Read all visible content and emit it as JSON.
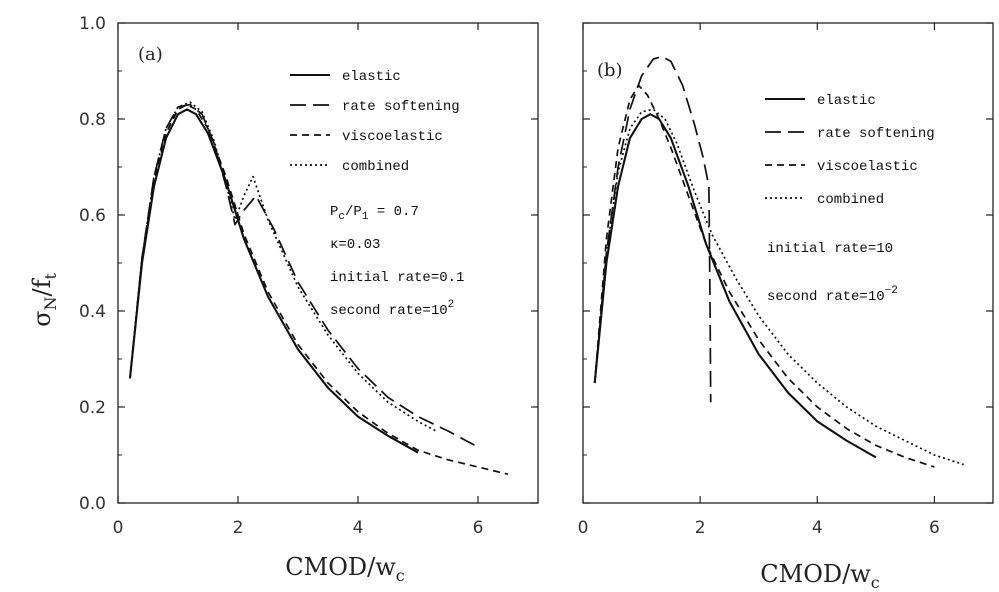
{
  "chart_data": [
    {
      "type": "line",
      "panel_label": "(a)",
      "xlabel": "CMOD/w",
      "xlabel_sub": "c",
      "ylabel": "σ",
      "ylabel_sub1": "N",
      "ylabel_mid": "/f",
      "ylabel_sub2": "t",
      "xlim": [
        0,
        7
      ],
      "ylim": [
        0,
        1.0
      ],
      "xticks": [
        0,
        2,
        4,
        6
      ],
      "xtick_labels": [
        "0",
        "2",
        "4",
        "6"
      ],
      "yticks": [
        0.0,
        0.2,
        0.4,
        0.6,
        0.8,
        1.0
      ],
      "ytick_labels": [
        "0.0",
        "0.2",
        "0.4",
        "0.6",
        "0.8",
        "1.0"
      ],
      "legend_position": "top-right",
      "series": [
        {
          "name": "elastic",
          "style": "solid",
          "x": [
            0.2,
            0.4,
            0.6,
            0.8,
            1.0,
            1.15,
            1.3,
            1.5,
            1.8,
            2.1,
            2.5,
            3.0,
            3.5,
            4.0,
            4.5,
            5.0
          ],
          "y": [
            0.26,
            0.5,
            0.66,
            0.76,
            0.81,
            0.82,
            0.81,
            0.77,
            0.67,
            0.55,
            0.43,
            0.32,
            0.24,
            0.18,
            0.14,
            0.105
          ]
        },
        {
          "name": "rate softening",
          "style": "long-dash",
          "x": [
            0.2,
            0.4,
            0.6,
            0.8,
            1.0,
            1.2,
            1.4,
            1.6,
            1.8,
            1.95,
            2.1,
            2.3,
            2.6,
            3.0,
            3.5,
            4.0,
            4.5,
            5.0,
            5.5,
            5.95
          ],
          "y": [
            0.26,
            0.51,
            0.68,
            0.78,
            0.825,
            0.83,
            0.81,
            0.75,
            0.66,
            0.58,
            0.61,
            0.64,
            0.57,
            0.46,
            0.36,
            0.28,
            0.22,
            0.18,
            0.15,
            0.12
          ]
        },
        {
          "name": "viscoelastic",
          "style": "dash",
          "x": [
            0.2,
            0.4,
            0.6,
            0.8,
            1.0,
            1.15,
            1.3,
            1.5,
            1.8,
            2.1,
            2.5,
            3.0,
            3.5,
            4.0,
            4.5,
            5.0,
            5.5,
            6.0,
            6.5
          ],
          "y": [
            0.26,
            0.51,
            0.67,
            0.77,
            0.82,
            0.83,
            0.82,
            0.78,
            0.68,
            0.56,
            0.44,
            0.33,
            0.25,
            0.19,
            0.145,
            0.11,
            0.09,
            0.075,
            0.06
          ]
        },
        {
          "name": "combined",
          "style": "dot",
          "x": [
            0.2,
            0.4,
            0.6,
            0.8,
            1.0,
            1.2,
            1.4,
            1.6,
            1.8,
            1.95,
            2.1,
            2.25,
            2.5,
            3.0,
            3.5,
            4.0,
            4.5,
            5.0,
            5.3
          ],
          "y": [
            0.26,
            0.51,
            0.68,
            0.78,
            0.825,
            0.835,
            0.815,
            0.755,
            0.665,
            0.59,
            0.64,
            0.68,
            0.59,
            0.45,
            0.35,
            0.27,
            0.21,
            0.17,
            0.15
          ]
        }
      ],
      "annotations": [
        {
          "parts": [
            {
              "t": "P"
            },
            {
              "t": "c",
              "sub": true
            },
            {
              "t": "/P"
            },
            {
              "t": "1",
              "sub": true
            },
            {
              "t": " = 0.7"
            }
          ]
        },
        {
          "parts": [
            {
              "t": "κ=0.03"
            }
          ]
        },
        {
          "parts": [
            {
              "t": "initial rate=0.1"
            }
          ]
        },
        {
          "parts": [
            {
              "t": "second rate=10"
            },
            {
              "t": "2",
              "sup": true
            }
          ]
        }
      ]
    },
    {
      "type": "line",
      "panel_label": "(b)",
      "xlabel": "CMOD/w",
      "xlabel_sub": "c",
      "xlim": [
        0,
        7
      ],
      "ylim": [
        0,
        1.0
      ],
      "xticks": [
        0,
        2,
        4,
        6
      ],
      "xtick_labels": [
        "0",
        "2",
        "4",
        "6"
      ],
      "legend_position": "top-right",
      "series": [
        {
          "name": "elastic",
          "style": "solid",
          "x": [
            0.2,
            0.4,
            0.6,
            0.8,
            1.0,
            1.15,
            1.3,
            1.5,
            1.8,
            2.1,
            2.5,
            3.0,
            3.5,
            4.0,
            4.5,
            5.0
          ],
          "y": [
            0.25,
            0.5,
            0.66,
            0.76,
            0.8,
            0.81,
            0.8,
            0.76,
            0.66,
            0.54,
            0.42,
            0.31,
            0.23,
            0.17,
            0.13,
            0.095
          ]
        },
        {
          "name": "rate softening",
          "style": "long-dash",
          "x": [
            0.2,
            0.4,
            0.6,
            0.8,
            1.0,
            1.2,
            1.35,
            1.5,
            1.7,
            1.9,
            2.05,
            2.15,
            2.17,
            2.18
          ],
          "y": [
            0.25,
            0.52,
            0.7,
            0.82,
            0.89,
            0.925,
            0.93,
            0.92,
            0.87,
            0.79,
            0.72,
            0.66,
            0.4,
            0.21
          ]
        },
        {
          "name": "viscoelastic",
          "style": "dash",
          "x": [
            0.2,
            0.4,
            0.6,
            0.8,
            0.95,
            1.1,
            1.3,
            1.5,
            1.8,
            2.1,
            2.5,
            3.0,
            3.5,
            4.0,
            4.5,
            5.0,
            5.5,
            6.0
          ],
          "y": [
            0.25,
            0.55,
            0.74,
            0.84,
            0.87,
            0.85,
            0.8,
            0.74,
            0.64,
            0.54,
            0.44,
            0.34,
            0.26,
            0.2,
            0.155,
            0.12,
            0.095,
            0.075
          ]
        },
        {
          "name": "combined",
          "style": "dot",
          "x": [
            0.2,
            0.4,
            0.6,
            0.8,
            1.0,
            1.2,
            1.4,
            1.6,
            1.9,
            2.2,
            2.6,
            3.0,
            3.5,
            4.0,
            4.5,
            5.0,
            5.5,
            6.0,
            6.5
          ],
          "y": [
            0.25,
            0.52,
            0.69,
            0.78,
            0.815,
            0.82,
            0.8,
            0.75,
            0.65,
            0.56,
            0.47,
            0.39,
            0.31,
            0.25,
            0.2,
            0.16,
            0.13,
            0.1,
            0.08
          ]
        }
      ],
      "annotations": [
        {
          "parts": [
            {
              "t": "initial rate=10"
            }
          ]
        },
        {
          "parts": [
            {
              "t": "second rate=10"
            },
            {
              "t": "−2",
              "sup": true
            }
          ]
        }
      ]
    }
  ]
}
